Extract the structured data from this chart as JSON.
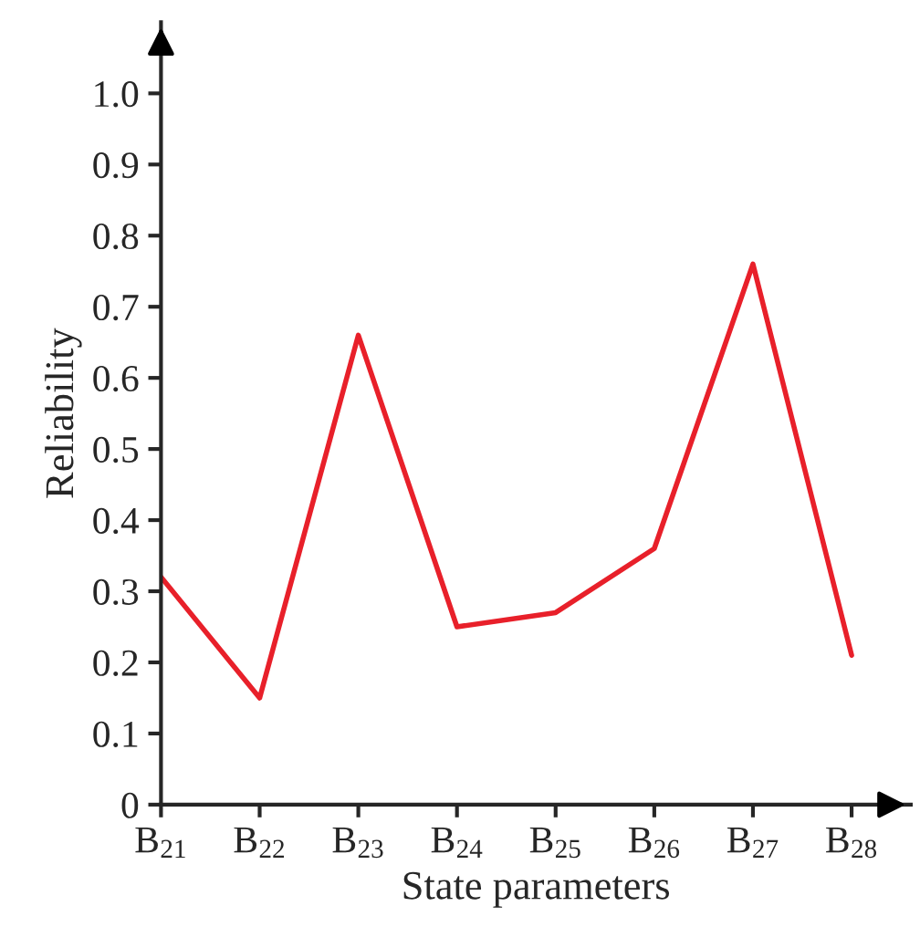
{
  "chart_data": {
    "type": "line",
    "xlabel": "State parameters",
    "ylabel": "Reliability",
    "categories": [
      "B$_{21}$",
      "B$_{22}$",
      "B$_{23}$",
      "B$_{24}$",
      "B$_{25}$",
      "B$_{26}$",
      "B$_{27}$",
      "B$_{28}$"
    ],
    "series": [
      {
        "color": "#e8202a",
        "values": [
          0.32,
          0.15,
          0.66,
          0.25,
          0.27,
          0.36,
          0.76,
          0.21
        ]
      }
    ],
    "ylim": [
      0,
      1.1
    ],
    "yticks": [
      0,
      0.1,
      0.2,
      0.3,
      0.4,
      0.5,
      0.6,
      0.7,
      0.8,
      0.9,
      {
        "value": 1.0,
        "label": "1.0"
      }
    ],
    "grid": false,
    "legend": false,
    "marker": "none",
    "line_style": "solid"
  }
}
